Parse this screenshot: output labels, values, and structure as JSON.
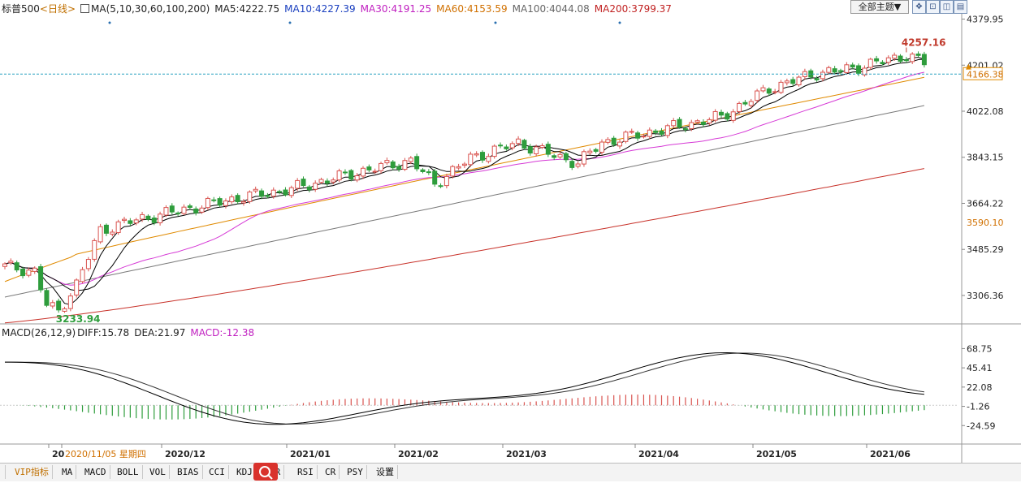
{
  "header": {
    "symbol": "标普500",
    "period": "<日线>",
    "ma_params": "MA(5,10,30,60,100,200)",
    "ma5": "MA5:4222.75",
    "ma10": "MA10:4227.39",
    "ma30": "MA30:4191.25",
    "ma60": "MA60:4153.59",
    "ma100": "MA100:4044.08",
    "ma200": "MA200:3799.37"
  },
  "toolbar": {
    "theme_label": "全部主题▼",
    "icons": [
      "expand-icon",
      "fit-icon",
      "split-icon",
      "layout-icon"
    ]
  },
  "colors": {
    "up": "#d9534f",
    "down": "#2e9d3c",
    "ma5": "#000000",
    "ma10": "#000000",
    "ma30": "#d63ad6",
    "ma60": "#e08a00",
    "ma100": "#7a7a7a",
    "ma200": "#c8322a",
    "hdr_ma10": "#1a3fbf",
    "hdr_ma30": "#c020c0",
    "hdr_ma60": "#d07000",
    "hdr_ma100": "#666666",
    "hdr_ma200": "#c02020",
    "dashline": "#2aa1c0"
  },
  "chart_data": {
    "type": "candlestick",
    "y_axis_ticks": [
      "4379.95",
      "4201.02",
      "4022.08",
      "3843.15",
      "3664.22",
      "3485.29",
      "3306.36"
    ],
    "ylim": [
      3199,
      4410
    ],
    "price_labels": {
      "high": "4257.16",
      "low": "3233.94",
      "current": "4166.38",
      "level": "3590.10"
    },
    "current_price": 4166.38,
    "x_axis_labels": [
      "20",
      "2020/11/05 星期四",
      "2020/12",
      "2021/01",
      "2021/02",
      "2021/03",
      "2021/04",
      "2021/05",
      "2021/06"
    ],
    "ma_end_values": {
      "ma5": 4222.75,
      "ma10": 4227.39,
      "ma30": 4191.25,
      "ma60": 4153.59,
      "ma100": 4044.08,
      "ma200": 3799.37
    },
    "macd": {
      "params": "MACD(26,12,9)",
      "diff_label": "DIFF:15.78",
      "dea_label": "DEA:21.97",
      "macd_label": "MACD:-12.38",
      "y_axis_ticks": [
        "68.75",
        "45.41",
        "22.08",
        "-1.26",
        "-24.59"
      ],
      "ylim": [
        -45,
        80
      ]
    }
  },
  "indicator_tabs": [
    "VIP指标",
    "MA",
    "MACD",
    "BOLL",
    "VOL",
    "BIAS",
    "CCI",
    "KDJ",
    "WR",
    "RSI",
    "CR",
    "PSY",
    "设置"
  ]
}
